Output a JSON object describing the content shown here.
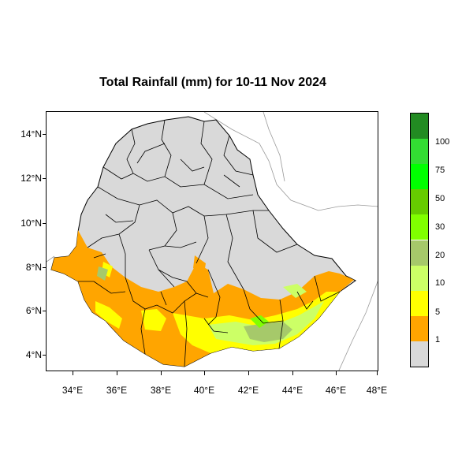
{
  "title": "Total Rainfall (mm) for 10-11 Nov 2024",
  "y_axis_labels": [
    "14°N",
    "12°N",
    "10°N",
    "8°N",
    "6°N",
    "4°N"
  ],
  "x_axis_labels": [
    "34°E",
    "36°E",
    "38°E",
    "40°E",
    "42°E",
    "44°E",
    "46°E",
    "48°E"
  ],
  "legend": {
    "levels": [
      "1",
      "5",
      "10",
      "20",
      "30",
      "50",
      "75",
      "100"
    ],
    "colors": [
      "#d9d9d9",
      "#ffa500",
      "#ffff00",
      "#ccff66",
      "#a6c96a",
      "#80ff00",
      "#66cc00",
      "#00ff00",
      "#33dd33",
      "#228b22"
    ]
  },
  "colors": {
    "land_no_rain": "#d9d9d9",
    "outside": "#ffffff",
    "borders": "#000000",
    "neighbors": "#9a9a9a"
  }
}
